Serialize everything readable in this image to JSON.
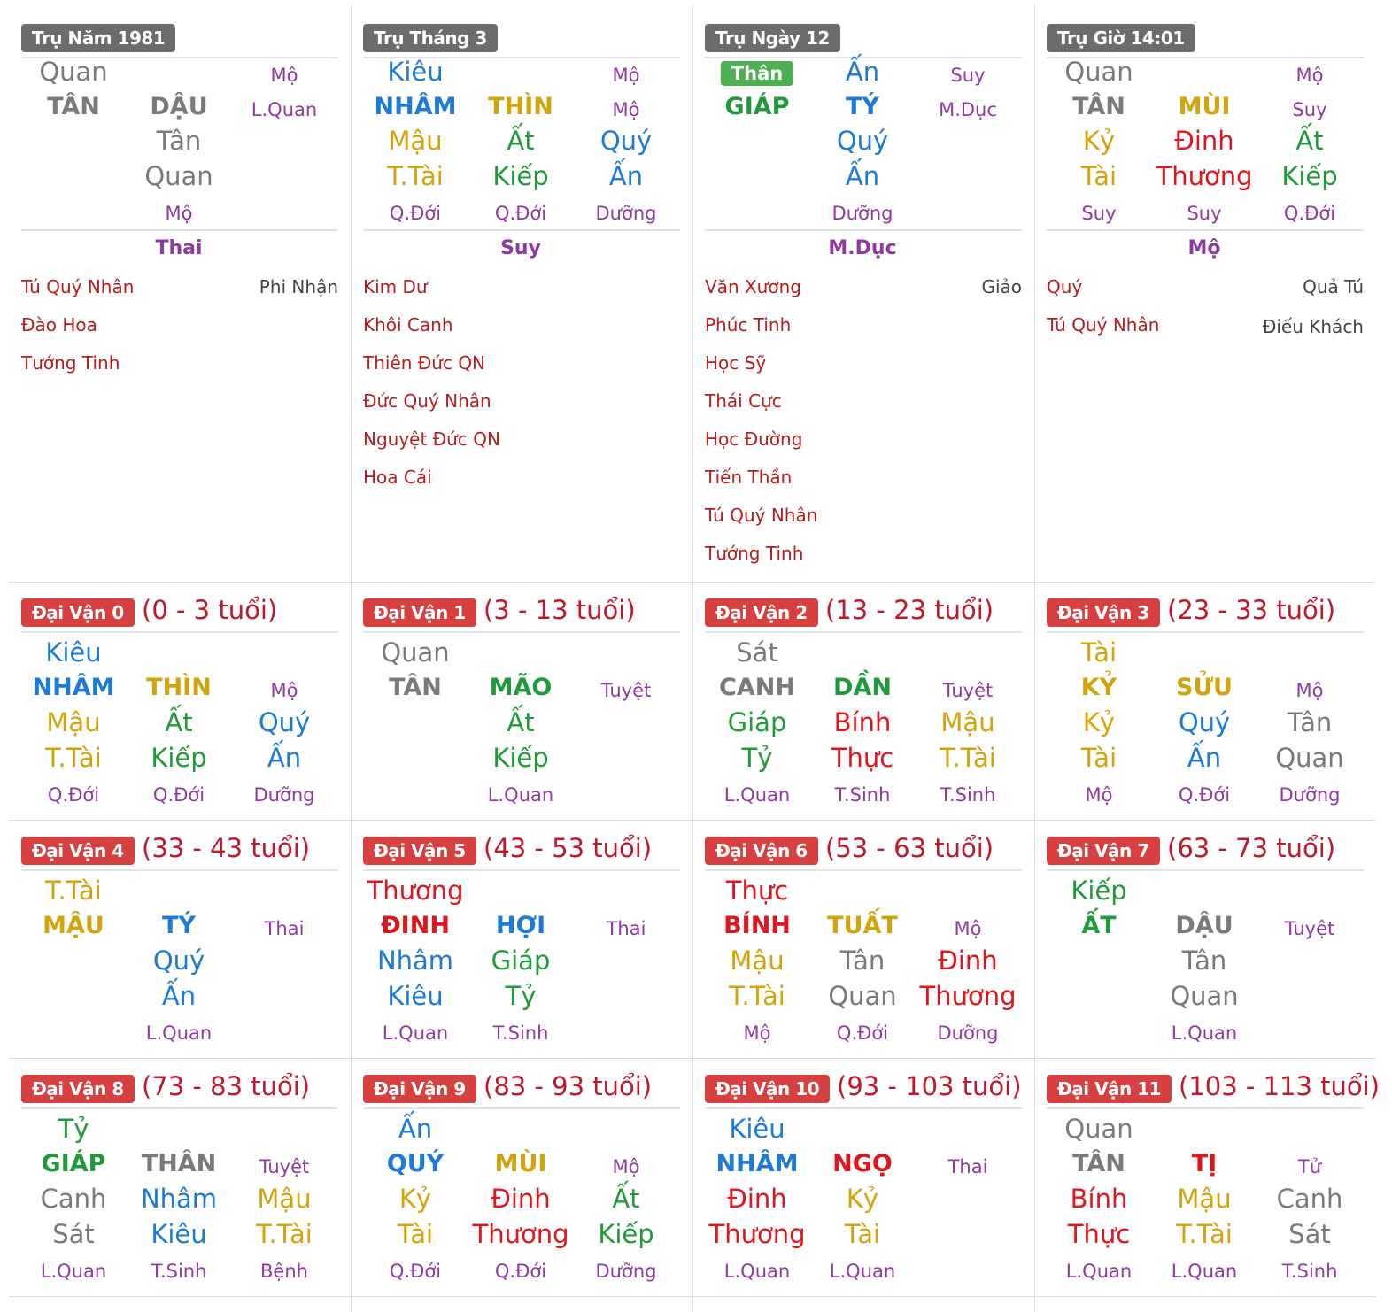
{
  "colors": {
    "kim": "#7a7a7a",
    "thuy": "#1e7ad7",
    "moc": "#1f9a3a",
    "hoa": "#e0141c",
    "tho": "#d2a40b",
    "purple": "#8e3aa0",
    "star": "#b71c1c",
    "star_gray": "#444444",
    "badge_gray": "#6c6c6c",
    "badge_red": "#d64040",
    "age": "#c0172a"
  },
  "pillars": [
    {
      "badge": "Trụ Năm 1981",
      "thap_than": {
        "text": "Quan",
        "c": "kim"
      },
      "can_ts": {
        "text": "Mộ",
        "c": "purple"
      },
      "can": {
        "text": "TÂN",
        "c": "kim"
      },
      "chi": {
        "text": "DẬU",
        "c": "kim"
      },
      "chi_ts": {
        "text": "L.Quan",
        "c": "purple"
      },
      "hidden": [
        {
          "can": {
            "text": "Tân",
            "c": "kim"
          },
          "god": {
            "text": "Quan",
            "c": "kim"
          },
          "ts": {
            "text": "Mộ",
            "c": "purple"
          }
        }
      ],
      "nap_am": "Thai",
      "stars_left": [
        "Tú Quý Nhân",
        "Đào Hoa",
        "Tướng Tinh"
      ],
      "stars_right": [
        "Phi Nhận"
      ]
    },
    {
      "badge": "Trụ Tháng 3",
      "thap_than": {
        "text": "Kiêu",
        "c": "thuy"
      },
      "can_ts": {
        "text": "Mộ",
        "c": "purple"
      },
      "can": {
        "text": "NHÂM",
        "c": "thuy"
      },
      "chi": {
        "text": "THÌN",
        "c": "tho"
      },
      "chi_ts": {
        "text": "Mộ",
        "c": "purple"
      },
      "hidden": [
        {
          "can": {
            "text": "Mậu",
            "c": "tho"
          },
          "god": {
            "text": "T.Tài",
            "c": "tho"
          },
          "ts": {
            "text": "Q.Đới",
            "c": "purple"
          }
        },
        {
          "can": {
            "text": "Ất",
            "c": "moc"
          },
          "god": {
            "text": "Kiếp",
            "c": "moc"
          },
          "ts": {
            "text": "Q.Đới",
            "c": "purple"
          }
        },
        {
          "can": {
            "text": "Quý",
            "c": "thuy"
          },
          "god": {
            "text": "Ấn",
            "c": "thuy"
          },
          "ts": {
            "text": "Dưỡng",
            "c": "purple"
          }
        }
      ],
      "nap_am": "Suy",
      "stars_left": [
        "Kim Dư",
        "Khôi Canh",
        "Thiên Đức QN",
        "Đức Quý Nhân",
        "Nguyệt Đức QN",
        "Hoa Cái"
      ],
      "stars_right": []
    },
    {
      "badge": "Trụ Ngày 12",
      "thap_than_pill": "Thân",
      "can_ts": {
        "text": "Suy",
        "c": "purple"
      },
      "can": {
        "text": "GIÁP",
        "c": "moc"
      },
      "chi_god": {
        "text": "Ấn",
        "c": "thuy"
      },
      "chi": {
        "text": "TÝ",
        "c": "thuy"
      },
      "chi_ts": {
        "text": "M.Dục",
        "c": "purple"
      },
      "hidden": [
        {
          "can": {
            "text": "Quý",
            "c": "thuy"
          },
          "god": {
            "text": "Ấn",
            "c": "thuy"
          },
          "ts": {
            "text": "Dưỡng",
            "c": "purple"
          }
        }
      ],
      "nap_am": "M.Dục",
      "stars_left": [
        "Văn Xương",
        "Phúc Tinh",
        "Học Sỹ",
        "Thái Cực",
        "Học Đường",
        "Tiến Thần",
        "Tú Quý Nhân",
        "Tướng Tinh"
      ],
      "stars_right": [
        "Giảo"
      ]
    },
    {
      "badge": "Trụ Giờ 14:01",
      "thap_than": {
        "text": "Quan",
        "c": "kim"
      },
      "can_ts": {
        "text": "Mộ",
        "c": "purple"
      },
      "can": {
        "text": "TÂN",
        "c": "kim"
      },
      "chi": {
        "text": "MÙI",
        "c": "tho"
      },
      "chi_ts": {
        "text": "Suy",
        "c": "purple"
      },
      "hidden": [
        {
          "can": {
            "text": "Kỷ",
            "c": "tho"
          },
          "god": {
            "text": "Tài",
            "c": "tho"
          },
          "ts": {
            "text": "Suy",
            "c": "purple"
          }
        },
        {
          "can": {
            "text": "Đinh",
            "c": "hoa"
          },
          "god": {
            "text": "Thương",
            "c": "hoa"
          },
          "ts": {
            "text": "Suy",
            "c": "purple"
          }
        },
        {
          "can": {
            "text": "Ất",
            "c": "moc"
          },
          "god": {
            "text": "Kiếp",
            "c": "moc"
          },
          "ts": {
            "text": "Q.Đới",
            "c": "purple"
          }
        }
      ],
      "nap_am": "Mộ",
      "stars_left": [
        "Quý",
        "Tú Quý Nhân"
      ],
      "stars_right": [
        "Quả Tú",
        "Điếu Khách"
      ]
    }
  ],
  "dai_van": [
    {
      "badge": "Đại Vận 0",
      "age": "(0 - 3 tuổi)",
      "god": {
        "text": "Kiêu",
        "c": "thuy"
      },
      "can": {
        "text": "NHÂM",
        "c": "thuy"
      },
      "chi": {
        "text": "THÌN",
        "c": "tho"
      },
      "ts": {
        "text": "Mộ",
        "c": "purple"
      },
      "hidden": [
        {
          "can": {
            "text": "Mậu",
            "c": "tho"
          },
          "god": {
            "text": "T.Tài",
            "c": "tho"
          },
          "ts": {
            "text": "Q.Đới",
            "c": "purple"
          }
        },
        {
          "can": {
            "text": "Ất",
            "c": "moc"
          },
          "god": {
            "text": "Kiếp",
            "c": "moc"
          },
          "ts": {
            "text": "Q.Đới",
            "c": "purple"
          }
        },
        {
          "can": {
            "text": "Quý",
            "c": "thuy"
          },
          "god": {
            "text": "Ấn",
            "c": "thuy"
          },
          "ts": {
            "text": "Dưỡng",
            "c": "purple"
          }
        }
      ]
    },
    {
      "badge": "Đại Vận 1",
      "age": "(3 - 13 tuổi)",
      "god": {
        "text": "Quan",
        "c": "kim"
      },
      "can": {
        "text": "TÂN",
        "c": "kim"
      },
      "chi": {
        "text": "MÃO",
        "c": "moc"
      },
      "ts": {
        "text": "Tuyệt",
        "c": "purple"
      },
      "hidden": [
        {
          "can": {
            "text": "Ất",
            "c": "moc"
          },
          "god": {
            "text": "Kiếp",
            "c": "moc"
          },
          "ts": {
            "text": "L.Quan",
            "c": "purple"
          }
        }
      ]
    },
    {
      "badge": "Đại Vận 2",
      "age": "(13 - 23 tuổi)",
      "god": {
        "text": "Sát",
        "c": "kim"
      },
      "can": {
        "text": "CANH",
        "c": "kim"
      },
      "chi": {
        "text": "DẦN",
        "c": "moc"
      },
      "ts": {
        "text": "Tuyệt",
        "c": "purple"
      },
      "hidden": [
        {
          "can": {
            "text": "Giáp",
            "c": "moc"
          },
          "god": {
            "text": "Tỷ",
            "c": "moc"
          },
          "ts": {
            "text": "L.Quan",
            "c": "purple"
          }
        },
        {
          "can": {
            "text": "Bính",
            "c": "hoa"
          },
          "god": {
            "text": "Thực",
            "c": "hoa"
          },
          "ts": {
            "text": "T.Sinh",
            "c": "purple"
          }
        },
        {
          "can": {
            "text": "Mậu",
            "c": "tho"
          },
          "god": {
            "text": "T.Tài",
            "c": "tho"
          },
          "ts": {
            "text": "T.Sinh",
            "c": "purple"
          }
        }
      ]
    },
    {
      "badge": "Đại Vận 3",
      "age": "(23 - 33 tuổi)",
      "god": {
        "text": "Tài",
        "c": "tho"
      },
      "can": {
        "text": "KỶ",
        "c": "tho"
      },
      "chi": {
        "text": "SỬU",
        "c": "tho"
      },
      "ts": {
        "text": "Mộ",
        "c": "purple"
      },
      "hidden": [
        {
          "can": {
            "text": "Kỷ",
            "c": "tho"
          },
          "god": {
            "text": "Tài",
            "c": "tho"
          },
          "ts": {
            "text": "Mộ",
            "c": "purple"
          }
        },
        {
          "can": {
            "text": "Quý",
            "c": "thuy"
          },
          "god": {
            "text": "Ấn",
            "c": "thuy"
          },
          "ts": {
            "text": "Q.Đới",
            "c": "purple"
          }
        },
        {
          "can": {
            "text": "Tân",
            "c": "kim"
          },
          "god": {
            "text": "Quan",
            "c": "kim"
          },
          "ts": {
            "text": "Dưỡng",
            "c": "purple"
          }
        }
      ]
    },
    {
      "badge": "Đại Vận 4",
      "age": "(33 - 43 tuổi)",
      "god": {
        "text": "T.Tài",
        "c": "tho"
      },
      "can": {
        "text": "MẬU",
        "c": "tho"
      },
      "chi": {
        "text": "TÝ",
        "c": "thuy"
      },
      "ts": {
        "text": "Thai",
        "c": "purple"
      },
      "hidden": [
        {
          "can": {
            "text": "Quý",
            "c": "thuy"
          },
          "god": {
            "text": "Ấn",
            "c": "thuy"
          },
          "ts": {
            "text": "L.Quan",
            "c": "purple"
          }
        }
      ]
    },
    {
      "badge": "Đại Vận 5",
      "age": "(43 - 53 tuổi)",
      "god": {
        "text": "Thương",
        "c": "hoa"
      },
      "can": {
        "text": "ĐINH",
        "c": "hoa"
      },
      "chi": {
        "text": "HỢI",
        "c": "thuy"
      },
      "ts": {
        "text": "Thai",
        "c": "purple"
      },
      "hidden": [
        {
          "can": {
            "text": "Nhâm",
            "c": "thuy"
          },
          "god": {
            "text": "Kiêu",
            "c": "thuy"
          },
          "ts": {
            "text": "L.Quan",
            "c": "purple"
          }
        },
        {
          "can": {
            "text": "Giáp",
            "c": "moc"
          },
          "god": {
            "text": "Tỷ",
            "c": "moc"
          },
          "ts": {
            "text": "T.Sinh",
            "c": "purple"
          }
        }
      ]
    },
    {
      "badge": "Đại Vận 6",
      "age": "(53 - 63 tuổi)",
      "god": {
        "text": "Thực",
        "c": "hoa"
      },
      "can": {
        "text": "BÍNH",
        "c": "hoa"
      },
      "chi": {
        "text": "TUẤT",
        "c": "tho"
      },
      "ts": {
        "text": "Mộ",
        "c": "purple"
      },
      "hidden": [
        {
          "can": {
            "text": "Mậu",
            "c": "tho"
          },
          "god": {
            "text": "T.Tài",
            "c": "tho"
          },
          "ts": {
            "text": "Mộ",
            "c": "purple"
          }
        },
        {
          "can": {
            "text": "Tân",
            "c": "kim"
          },
          "god": {
            "text": "Quan",
            "c": "kim"
          },
          "ts": {
            "text": "Q.Đới",
            "c": "purple"
          }
        },
        {
          "can": {
            "text": "Đinh",
            "c": "hoa"
          },
          "god": {
            "text": "Thương",
            "c": "hoa"
          },
          "ts": {
            "text": "Dưỡng",
            "c": "purple"
          }
        }
      ]
    },
    {
      "badge": "Đại Vận 7",
      "age": "(63 - 73 tuổi)",
      "god": {
        "text": "Kiếp",
        "c": "moc"
      },
      "can": {
        "text": "ẤT",
        "c": "moc"
      },
      "chi": {
        "text": "DẬU",
        "c": "kim"
      },
      "ts": {
        "text": "Tuyệt",
        "c": "purple"
      },
      "hidden": [
        {
          "can": {
            "text": "Tân",
            "c": "kim"
          },
          "god": {
            "text": "Quan",
            "c": "kim"
          },
          "ts": {
            "text": "L.Quan",
            "c": "purple"
          }
        }
      ]
    },
    {
      "badge": "Đại Vận 8",
      "age": "(73 - 83 tuổi)",
      "god": {
        "text": "Tỷ",
        "c": "moc"
      },
      "can": {
        "text": "GIÁP",
        "c": "moc"
      },
      "chi": {
        "text": "THÂN",
        "c": "kim"
      },
      "ts": {
        "text": "Tuyệt",
        "c": "purple"
      },
      "hidden": [
        {
          "can": {
            "text": "Canh",
            "c": "kim"
          },
          "god": {
            "text": "Sát",
            "c": "kim"
          },
          "ts": {
            "text": "L.Quan",
            "c": "purple"
          }
        },
        {
          "can": {
            "text": "Nhâm",
            "c": "thuy"
          },
          "god": {
            "text": "Kiêu",
            "c": "thuy"
          },
          "ts": {
            "text": "T.Sinh",
            "c": "purple"
          }
        },
        {
          "can": {
            "text": "Mậu",
            "c": "tho"
          },
          "god": {
            "text": "T.Tài",
            "c": "tho"
          },
          "ts": {
            "text": "Bệnh",
            "c": "purple"
          }
        }
      ]
    },
    {
      "badge": "Đại Vận 9",
      "age": "(83 - 93 tuổi)",
      "god": {
        "text": "Ấn",
        "c": "thuy"
      },
      "can": {
        "text": "QUÝ",
        "c": "thuy"
      },
      "chi": {
        "text": "MÙI",
        "c": "tho"
      },
      "ts": {
        "text": "Mộ",
        "c": "purple"
      },
      "hidden": [
        {
          "can": {
            "text": "Kỷ",
            "c": "tho"
          },
          "god": {
            "text": "Tài",
            "c": "tho"
          },
          "ts": {
            "text": "Q.Đới",
            "c": "purple"
          }
        },
        {
          "can": {
            "text": "Đinh",
            "c": "hoa"
          },
          "god": {
            "text": "Thương",
            "c": "hoa"
          },
          "ts": {
            "text": "Q.Đới",
            "c": "purple"
          }
        },
        {
          "can": {
            "text": "Ất",
            "c": "moc"
          },
          "god": {
            "text": "Kiếp",
            "c": "moc"
          },
          "ts": {
            "text": "Dưỡng",
            "c": "purple"
          }
        }
      ]
    },
    {
      "badge": "Đại Vận 10",
      "age": "(93 - 103 tuổi)",
      "god": {
        "text": "Kiêu",
        "c": "thuy"
      },
      "can": {
        "text": "NHÂM",
        "c": "thuy"
      },
      "chi": {
        "text": "NGỌ",
        "c": "hoa"
      },
      "ts": {
        "text": "Thai",
        "c": "purple"
      },
      "hidden": [
        {
          "can": {
            "text": "Đinh",
            "c": "hoa"
          },
          "god": {
            "text": "Thương",
            "c": "hoa"
          },
          "ts": {
            "text": "L.Quan",
            "c": "purple"
          }
        },
        {
          "can": {
            "text": "Kỷ",
            "c": "tho"
          },
          "god": {
            "text": "Tài",
            "c": "tho"
          },
          "ts": {
            "text": "L.Quan",
            "c": "purple"
          }
        }
      ]
    },
    {
      "badge": "Đại Vận 11",
      "age": "(103 - 113 tuổi)",
      "god": {
        "text": "Quan",
        "c": "kim"
      },
      "can": {
        "text": "TÂN",
        "c": "kim"
      },
      "chi": {
        "text": "TỊ",
        "c": "hoa"
      },
      "ts": {
        "text": "Tử",
        "c": "purple"
      },
      "hidden": [
        {
          "can": {
            "text": "Bính",
            "c": "hoa"
          },
          "god": {
            "text": "Thực",
            "c": "hoa"
          },
          "ts": {
            "text": "L.Quan",
            "c": "purple"
          }
        },
        {
          "can": {
            "text": "Mậu",
            "c": "tho"
          },
          "god": {
            "text": "T.Tài",
            "c": "tho"
          },
          "ts": {
            "text": "L.Quan",
            "c": "purple"
          }
        },
        {
          "can": {
            "text": "Canh",
            "c": "kim"
          },
          "god": {
            "text": "Sát",
            "c": "kim"
          },
          "ts": {
            "text": "T.Sinh",
            "c": "purple"
          }
        }
      ]
    }
  ]
}
